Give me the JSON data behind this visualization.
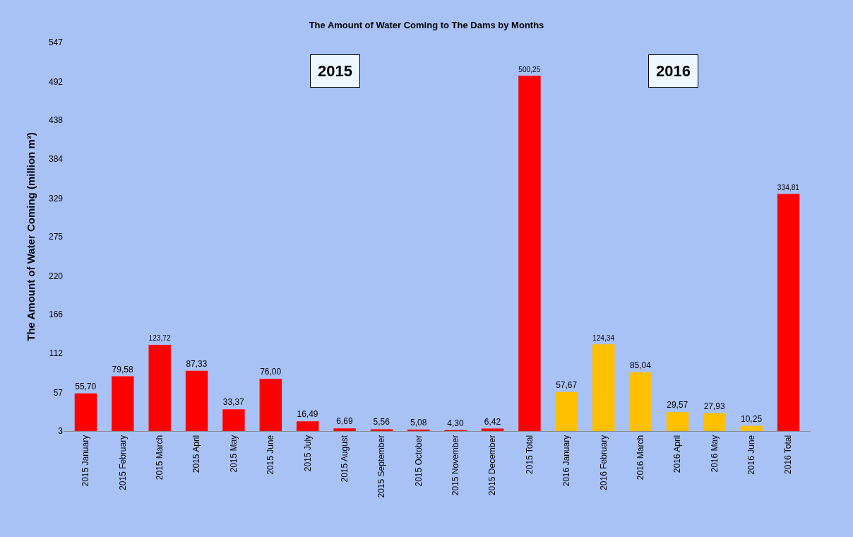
{
  "chart_data": {
    "type": "bar",
    "title": "The Amount of Water Coming to The Dams by Months",
    "ylabel": "The Amount of Water Coming (million m³)",
    "categories": [
      "2015 January",
      "2015 February",
      "2015 March",
      "2015 April",
      "2015 May",
      "2015 June",
      "2015 July",
      "2015 August",
      "2015 September",
      "2015 October",
      "2015 November",
      "2015 December",
      "2015 Total",
      "2016 January",
      "2016 February",
      "2016 March",
      "2016 April",
      "2016 May",
      "2016 June",
      "2016 Total"
    ],
    "values": [
      55.7,
      79.58,
      123.72,
      87.33,
      33.37,
      76.0,
      16.49,
      6.69,
      5.56,
      5.08,
      4.3,
      6.42,
      500.25,
      57.67,
      124.34,
      85.04,
      29.57,
      27.93,
      10.25,
      334.81
    ],
    "value_labels": [
      "55,70",
      "79,58",
      "123,72",
      "87,33",
      "33,37",
      "76,00",
      "16,49",
      "6,69",
      "5,56",
      "5,08",
      "4,30",
      "6,42",
      "500,25",
      "57,67",
      "124,34",
      "85,04",
      "29,57",
      "27,93",
      "10,25",
      "334,81"
    ],
    "colors": [
      "#ff0000",
      "#ff0000",
      "#ff0000",
      "#ff0000",
      "#ff0000",
      "#ff0000",
      "#ff0000",
      "#ff0000",
      "#ff0000",
      "#ff0000",
      "#ff0000",
      "#ff0000",
      "#ff0000",
      "#ffc000",
      "#ffc000",
      "#ffc000",
      "#ffc000",
      "#ffc000",
      "#ffc000",
      "#ff0000"
    ],
    "ylim": [
      3,
      547
    ],
    "yticks": [
      3,
      57,
      112,
      166,
      220,
      275,
      329,
      384,
      438,
      492,
      547
    ],
    "annotations": [
      "2015",
      "2016"
    ],
    "grid": false,
    "legend": false
  }
}
